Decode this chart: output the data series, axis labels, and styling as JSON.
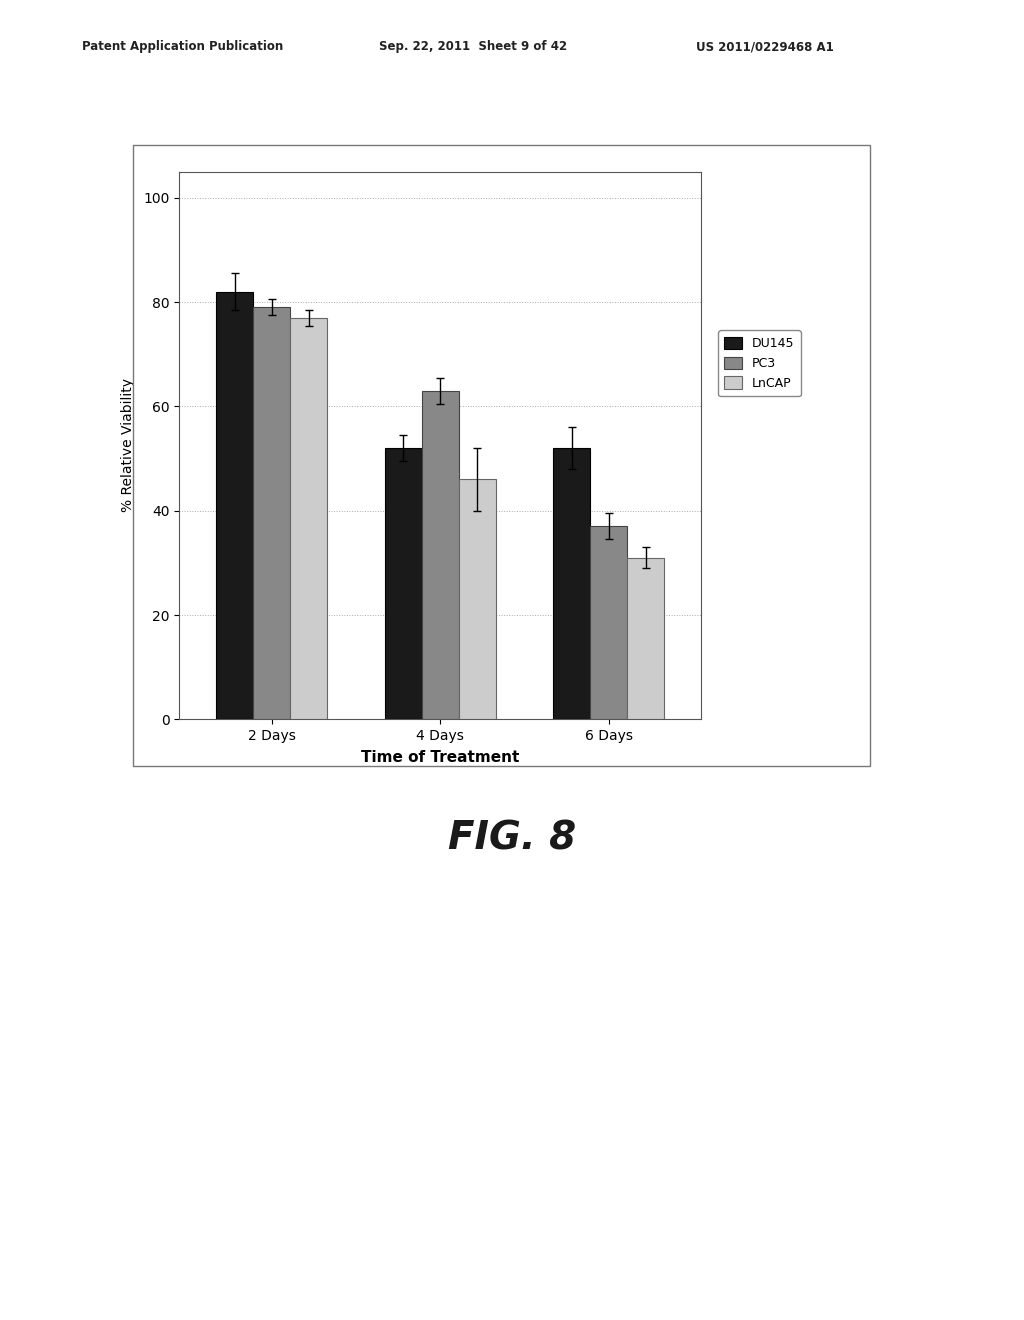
{
  "categories": [
    "2 Days",
    "4 Days",
    "6 Days"
  ],
  "series": {
    "DU145": [
      82,
      52,
      52
    ],
    "PC3": [
      79,
      63,
      37
    ],
    "LnCAP": [
      77,
      46,
      31
    ]
  },
  "errors": {
    "DU145": [
      3.5,
      2.5,
      4.0
    ],
    "PC3": [
      1.5,
      2.5,
      2.5
    ],
    "LnCAP": [
      1.5,
      6.0,
      2.0
    ]
  },
  "bar_colors": {
    "DU145": "#1a1a1a",
    "PC3": "#888888",
    "LnCAP": "#cccccc"
  },
  "bar_edgecolors": {
    "DU145": "#000000",
    "PC3": "#444444",
    "LnCAP": "#666666"
  },
  "ylabel": "% Relative Viability",
  "xlabel": "Time of Treatment",
  "ylim": [
    0,
    105
  ],
  "yticks": [
    0,
    20,
    40,
    60,
    80,
    100
  ],
  "legend_labels": [
    "DU145",
    "PC3",
    "LnCAP"
  ],
  "header_left": "Patent Application Publication",
  "header_mid": "Sep. 22, 2011  Sheet 9 of 42",
  "header_right": "US 2011/0229468 A1",
  "fig_label": "FIG. 8",
  "background_color": "#ffffff",
  "bar_width": 0.22,
  "axes_facecolor": "#ffffff",
  "grid_color": "#aaaaaa",
  "outer_box_color": "#999999"
}
